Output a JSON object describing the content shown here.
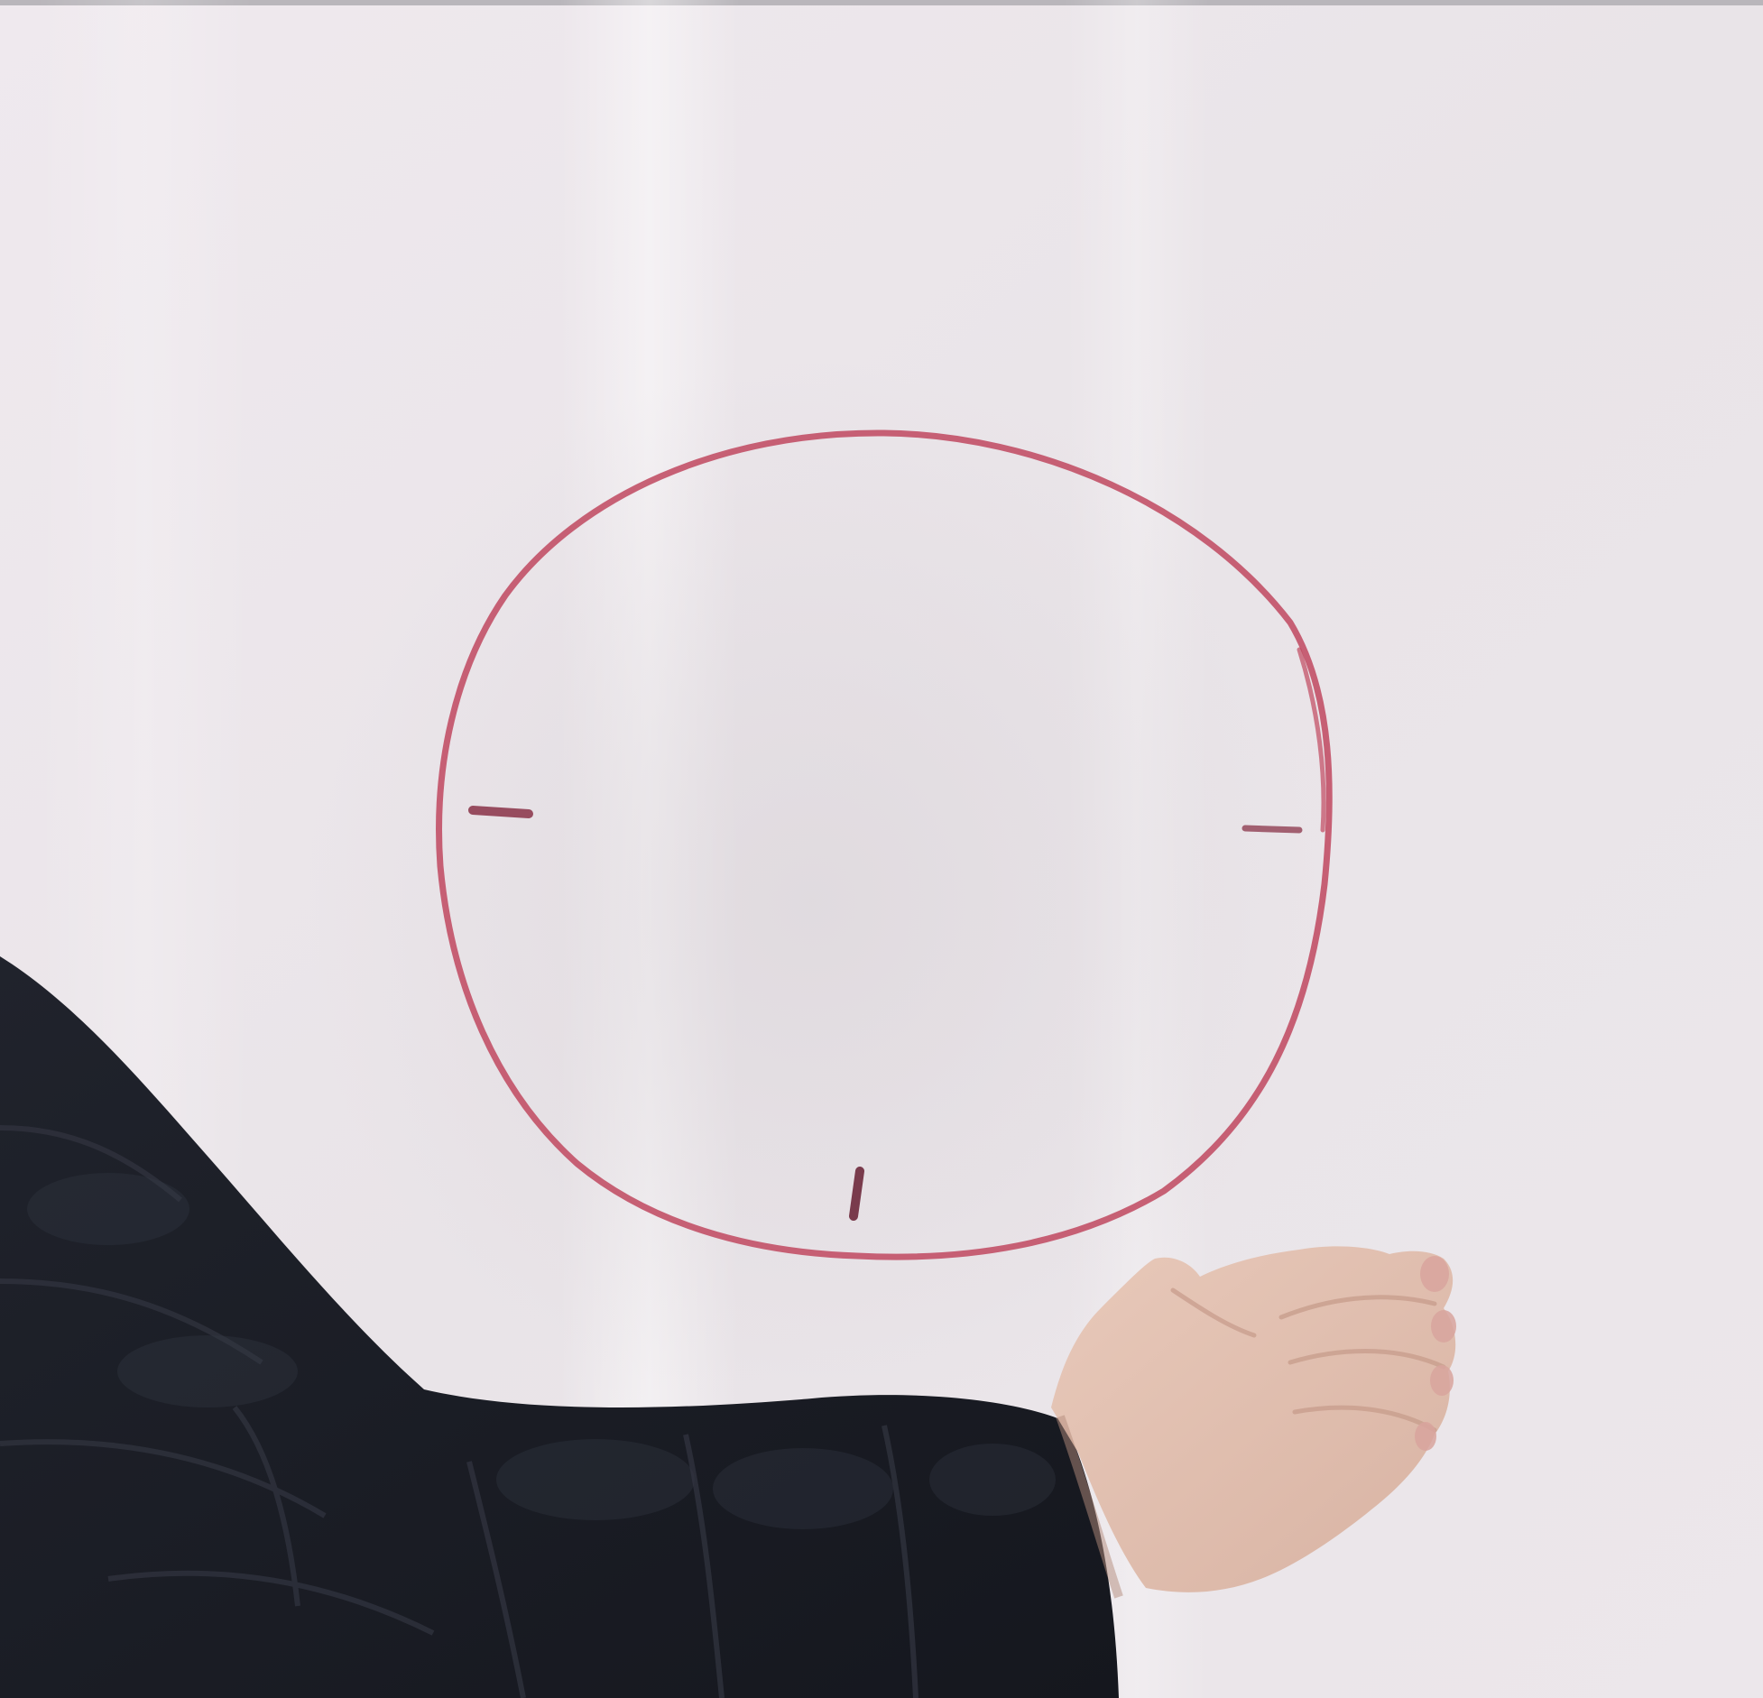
{
  "scene": {
    "subject": "whiteboard-with-hand-drawn-circle",
    "colors": {
      "board_light": "#f1ecef",
      "board_mid": "#e7e2e6",
      "board_shadow": "#ddd8dd",
      "marker": "#c0485f",
      "tick_marker": "#6e2a3c",
      "sleeve": "#1c1e27",
      "sleeve_highlight": "#2f323d",
      "skin": "#e2c2b2",
      "skin_shadow": "#c99f8e",
      "nail": "#d9a59e"
    },
    "circle": {
      "tick_count": 3,
      "tick_positions": [
        "left",
        "right",
        "bottom"
      ]
    }
  }
}
